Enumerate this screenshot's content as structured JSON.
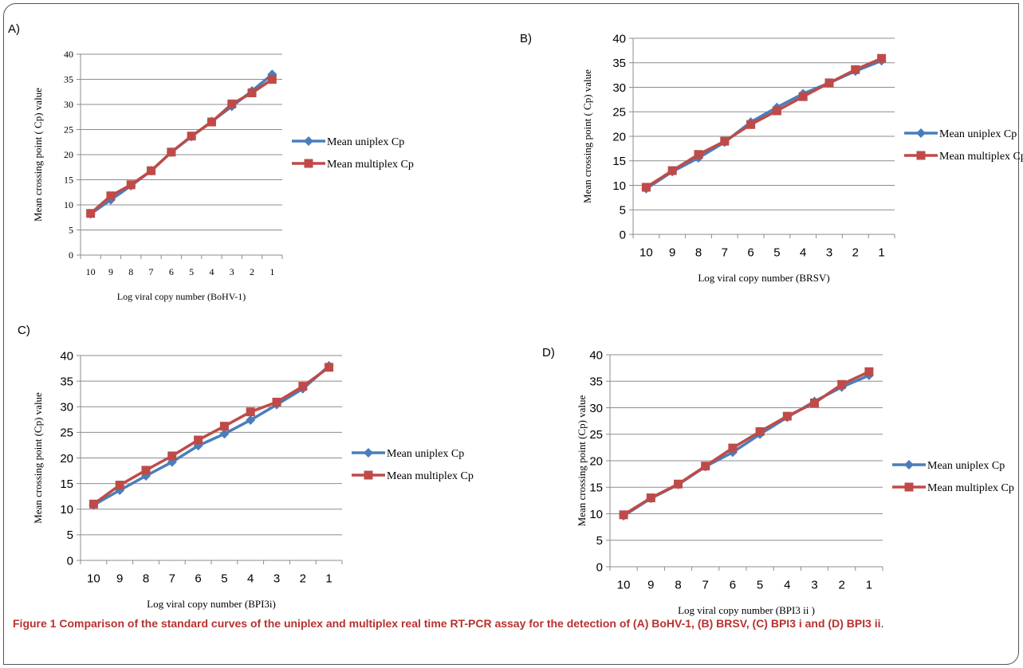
{
  "caption": {
    "title": "Figure 1 Comparison of the standard curves of the uniplex and multiplex real time RT-PCR assay for the detection of (A) BoHV-1, (B) BRSV, (C) BPI3 i and (D) BPI3 ii",
    "end": "."
  },
  "chart_data": [
    {
      "type": "line",
      "panel_label": "A)",
      "categories": [
        "10",
        "9",
        "8",
        "7",
        "6",
        "5",
        "4",
        "3",
        "2",
        "1"
      ],
      "xlabel": "Log viral copy number (BoHV-1)",
      "ylabel": "Mean crossing point ( Cp) value",
      "ylim": [
        0,
        40
      ],
      "yticks": [
        "0",
        "5",
        "10",
        "15",
        "20",
        "25",
        "30",
        "35",
        "40"
      ],
      "grid": true,
      "legend": "right",
      "series": [
        {
          "name": "Mean uniplex Cp",
          "color": "#4a7ebb",
          "marker": "diamond",
          "values": [
            8.2,
            11.0,
            13.8,
            16.8,
            20.5,
            23.6,
            26.6,
            29.6,
            32.7,
            36.0
          ]
        },
        {
          "name": "Mean multiplex Cp",
          "color": "#be4b48",
          "marker": "square",
          "values": [
            8.3,
            11.8,
            14.0,
            16.8,
            20.5,
            23.7,
            26.5,
            30.1,
            32.3,
            35.0
          ]
        }
      ]
    },
    {
      "type": "line",
      "panel_label": "B)",
      "categories": [
        "10",
        "9",
        "8",
        "7",
        "6",
        "5",
        "4",
        "3",
        "2",
        "1"
      ],
      "xlabel": "Log viral copy number (BRSV)",
      "ylabel": "Mean crossing point ( Cp) value",
      "ylim": [
        0,
        40
      ],
      "yticks": [
        "0",
        "5",
        "10",
        "15",
        "20",
        "25",
        "30",
        "35",
        "40"
      ],
      "grid": true,
      "legend": "right",
      "series": [
        {
          "name": "Mean uniplex Cp",
          "color": "#4a7ebb",
          "marker": "diamond",
          "values": [
            9.3,
            12.8,
            15.6,
            18.8,
            22.9,
            25.9,
            28.7,
            30.9,
            33.3,
            35.4
          ]
        },
        {
          "name": "Mean multiplex Cp",
          "color": "#be4b48",
          "marker": "square",
          "values": [
            9.6,
            13.0,
            16.3,
            19.0,
            22.4,
            25.2,
            28.1,
            30.9,
            33.6,
            35.9
          ]
        }
      ]
    },
    {
      "type": "line",
      "panel_label": "C)",
      "categories": [
        "10",
        "9",
        "8",
        "7",
        "6",
        "5",
        "4",
        "3",
        "2",
        "1"
      ],
      "xlabel": "Log viral copy number (BPI3i)",
      "ylabel": "Mean crossing point (Cp)  value",
      "ylim": [
        0,
        40
      ],
      "yticks": [
        "0",
        "5",
        "10",
        "15",
        "20",
        "25",
        "30",
        "35",
        "40"
      ],
      "grid": true,
      "legend": "right",
      "series": [
        {
          "name": "Mean uniplex Cp",
          "color": "#4a7ebb",
          "marker": "diamond",
          "values": [
            10.8,
            13.7,
            16.5,
            19.2,
            22.4,
            24.7,
            27.4,
            30.4,
            33.5,
            38.0
          ]
        },
        {
          "name": "Mean multiplex Cp",
          "color": "#be4b48",
          "marker": "square",
          "values": [
            11.0,
            14.7,
            17.6,
            20.4,
            23.5,
            26.2,
            29.0,
            30.9,
            34.0,
            37.7
          ]
        }
      ]
    },
    {
      "type": "line",
      "panel_label": "D)",
      "categories": [
        "10",
        "9",
        "8",
        "7",
        "6",
        "5",
        "4",
        "3",
        "2",
        "1"
      ],
      "xlabel": "Log viral copy number (BPI3 ii )",
      "ylabel": "Mean crossing point (Cp) value",
      "ylim": [
        0,
        40
      ],
      "yticks": [
        "0",
        "5",
        "10",
        "15",
        "20",
        "25",
        "30",
        "35",
        "40"
      ],
      "grid": true,
      "legend": "right",
      "series": [
        {
          "name": "Mean uniplex Cp",
          "color": "#4a7ebb",
          "marker": "diamond",
          "values": [
            9.6,
            12.9,
            15.5,
            18.9,
            21.6,
            25.0,
            28.2,
            31.2,
            33.9,
            36.1
          ]
        },
        {
          "name": "Mean multiplex Cp",
          "color": "#be4b48",
          "marker": "square",
          "values": [
            9.8,
            13.0,
            15.6,
            19.0,
            22.4,
            25.5,
            28.4,
            30.9,
            34.4,
            36.8
          ]
        }
      ]
    }
  ]
}
